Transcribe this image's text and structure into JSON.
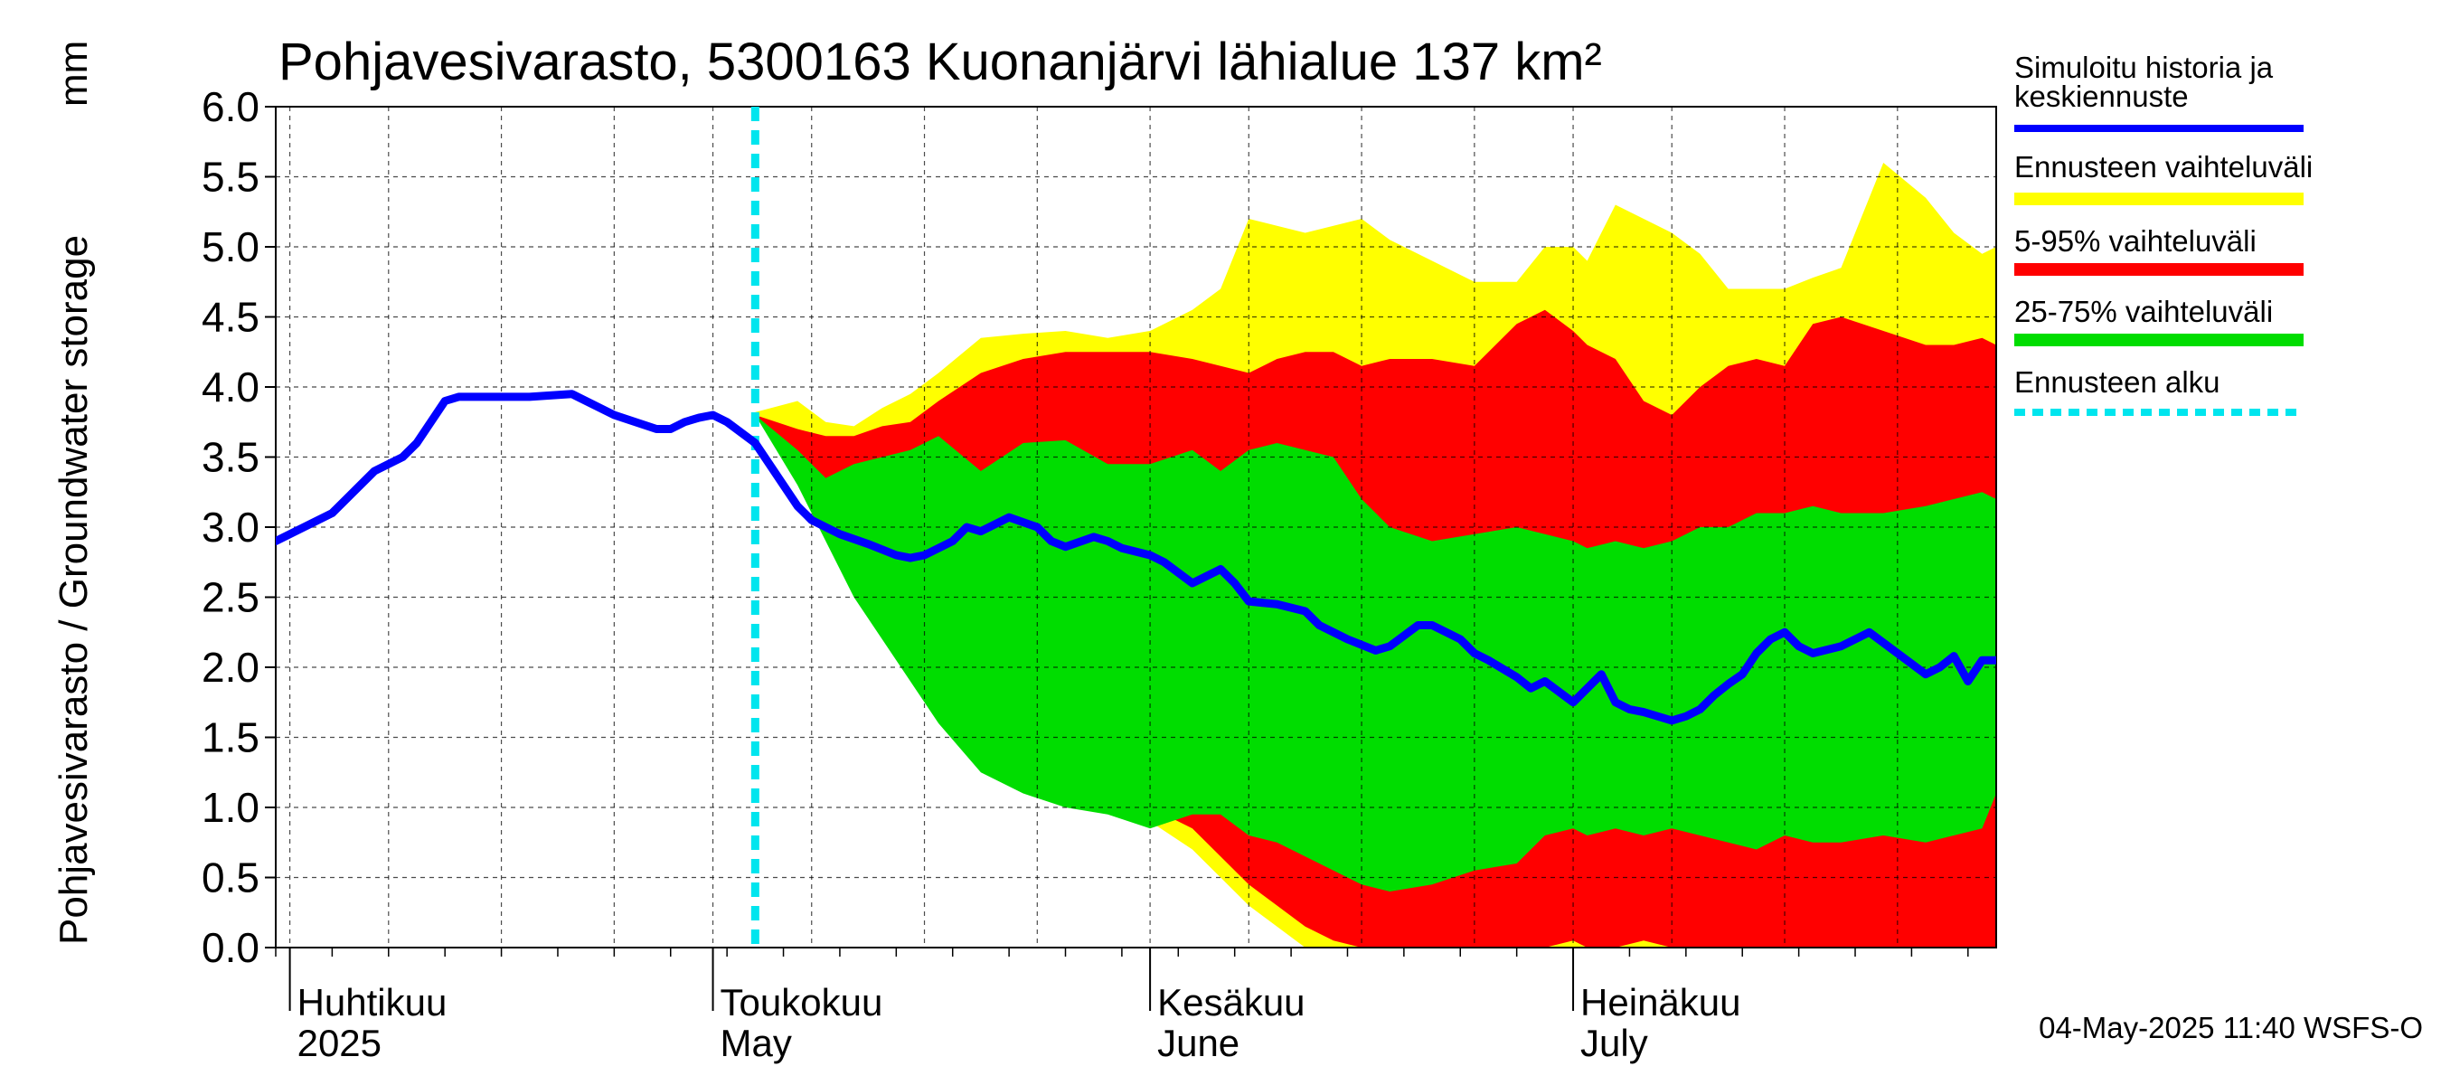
{
  "chart_data": {
    "type": "area",
    "title": "Pohjavesivarasto, 5300163 Kuonanjärvi lähialue 137 km²",
    "ylabel": "Pohjavesivarasto / Groundwater storage",
    "yunit": "mm",
    "ylim": [
      0.0,
      6.0
    ],
    "yticks": [
      "0.0",
      "0.5",
      "1.0",
      "1.5",
      "2.0",
      "2.5",
      "3.0",
      "3.5",
      "4.0",
      "4.5",
      "5.0",
      "5.5",
      "6.0"
    ],
    "xlim": [
      "2025-03-31",
      "2025-07-31"
    ],
    "grid": true,
    "months": [
      {
        "date": "2025-04-01",
        "fi": "Huhtikuu",
        "en": "2025"
      },
      {
        "date": "2025-05-01",
        "fi": "Toukokuu",
        "en": "May"
      },
      {
        "date": "2025-06-01",
        "fi": "Kesäkuu",
        "en": "June"
      },
      {
        "date": "2025-07-01",
        "fi": "Heinäkuu",
        "en": "July"
      }
    ],
    "forecast_start": "2025-05-04",
    "series": [
      {
        "name": "Simuloitu historia ja keskiennuste",
        "color": "#0000ff",
        "x": [
          "2025-03-31",
          "2025-04-02",
          "2025-04-04",
          "2025-04-06",
          "2025-04-07",
          "2025-04-09",
          "2025-04-10",
          "2025-04-12",
          "2025-04-13",
          "2025-04-14",
          "2025-04-15",
          "2025-04-16",
          "2025-04-18",
          "2025-04-21",
          "2025-04-24",
          "2025-04-27",
          "2025-04-28",
          "2025-04-29",
          "2025-04-30",
          "2025-05-01",
          "2025-05-02",
          "2025-05-04",
          "2025-05-05",
          "2025-05-06",
          "2025-05-07",
          "2025-05-08",
          "2025-05-10",
          "2025-05-12",
          "2025-05-14",
          "2025-05-15",
          "2025-05-16",
          "2025-05-18",
          "2025-05-19",
          "2025-05-20",
          "2025-05-22",
          "2025-05-24",
          "2025-05-25",
          "2025-05-26",
          "2025-05-28",
          "2025-05-29",
          "2025-05-30",
          "2025-06-01",
          "2025-06-02",
          "2025-06-04",
          "2025-06-06",
          "2025-06-07",
          "2025-06-08",
          "2025-06-10",
          "2025-06-12",
          "2025-06-13",
          "2025-06-14",
          "2025-06-15",
          "2025-06-17",
          "2025-06-18",
          "2025-06-20",
          "2025-06-21",
          "2025-06-22",
          "2025-06-23",
          "2025-06-24",
          "2025-06-25",
          "2025-06-27",
          "2025-06-28",
          "2025-06-29",
          "2025-07-01",
          "2025-07-03",
          "2025-07-04",
          "2025-07-05",
          "2025-07-06",
          "2025-07-07",
          "2025-07-08",
          "2025-07-09",
          "2025-07-10",
          "2025-07-11",
          "2025-07-12",
          "2025-07-13",
          "2025-07-14",
          "2025-07-15",
          "2025-07-16",
          "2025-07-17",
          "2025-07-18",
          "2025-07-20",
          "2025-07-22",
          "2025-07-24",
          "2025-07-26",
          "2025-07-27",
          "2025-07-28",
          "2025-07-29",
          "2025-07-30",
          "2025-07-31"
        ],
        "values": [
          2.9,
          3.0,
          3.1,
          3.3,
          3.4,
          3.5,
          3.6,
          3.9,
          3.93,
          3.93,
          3.93,
          3.93,
          3.93,
          3.95,
          3.8,
          3.7,
          3.7,
          3.75,
          3.78,
          3.8,
          3.75,
          3.6,
          3.45,
          3.3,
          3.15,
          3.05,
          2.95,
          2.88,
          2.8,
          2.78,
          2.8,
          2.9,
          3.0,
          2.97,
          3.07,
          3.0,
          2.9,
          2.86,
          2.93,
          2.9,
          2.85,
          2.8,
          2.75,
          2.6,
          2.7,
          2.6,
          2.47,
          2.45,
          2.4,
          2.3,
          2.25,
          2.2,
          2.12,
          2.15,
          2.3,
          2.3,
          2.25,
          2.2,
          2.1,
          2.05,
          1.93,
          1.85,
          1.9,
          1.75,
          1.95,
          1.75,
          1.7,
          1.68,
          1.65,
          1.62,
          1.65,
          1.7,
          1.8,
          1.88,
          1.95,
          2.1,
          2.2,
          2.25,
          2.15,
          2.1,
          2.15,
          2.25,
          2.1,
          1.95,
          2.0,
          2.08,
          1.9,
          2.05,
          2.05
        ]
      },
      {
        "name": "Ennusteen vaihteluväli",
        "color": "#ffff00",
        "x": [
          "2025-05-04",
          "2025-05-07",
          "2025-05-09",
          "2025-05-11",
          "2025-05-13",
          "2025-05-15",
          "2025-05-17",
          "2025-05-20",
          "2025-05-23",
          "2025-05-26",
          "2025-05-29",
          "2025-06-01",
          "2025-06-04",
          "2025-06-06",
          "2025-06-08",
          "2025-06-10",
          "2025-06-12",
          "2025-06-14",
          "2025-06-16",
          "2025-06-18",
          "2025-06-21",
          "2025-06-24",
          "2025-06-27",
          "2025-06-29",
          "2025-07-01",
          "2025-07-02",
          "2025-07-04",
          "2025-07-06",
          "2025-07-08",
          "2025-07-10",
          "2025-07-12",
          "2025-07-14",
          "2025-07-16",
          "2025-07-18",
          "2025-07-20",
          "2025-07-23",
          "2025-07-26",
          "2025-07-28",
          "2025-07-30",
          "2025-07-31"
        ],
        "high": [
          3.82,
          3.9,
          3.75,
          3.72,
          3.85,
          3.95,
          4.1,
          4.35,
          4.38,
          4.4,
          4.35,
          4.4,
          4.55,
          4.7,
          5.2,
          5.15,
          5.1,
          5.15,
          5.2,
          5.05,
          4.9,
          4.75,
          4.75,
          5.0,
          5.0,
          4.9,
          5.3,
          5.2,
          5.1,
          4.95,
          4.7,
          4.7,
          4.7,
          4.78,
          4.85,
          5.6,
          5.35,
          5.1,
          4.95,
          5.0
        ],
        "low": [
          3.82,
          3.55,
          3.1,
          2.7,
          2.3,
          2.0,
          1.75,
          1.5,
          1.3,
          1.1,
          1.05,
          0.9,
          0.7,
          0.5,
          0.3,
          0.15,
          0.0,
          0.0,
          0.0,
          0.0,
          0.0,
          0.0,
          0.0,
          0.0,
          0.0,
          0.0,
          0.0,
          0.0,
          0.0,
          0.0,
          0.0,
          0.0,
          0.0,
          0.0,
          0.0,
          0.0,
          0.0,
          0.0,
          0.0,
          0.0
        ]
      },
      {
        "name": "5-95% vaihteluväli",
        "color": "#ff0000",
        "x": [
          "2025-05-04",
          "2025-05-07",
          "2025-05-09",
          "2025-05-11",
          "2025-05-13",
          "2025-05-15",
          "2025-05-17",
          "2025-05-20",
          "2025-05-23",
          "2025-05-26",
          "2025-05-29",
          "2025-06-01",
          "2025-06-04",
          "2025-06-06",
          "2025-06-08",
          "2025-06-10",
          "2025-06-12",
          "2025-06-14",
          "2025-06-16",
          "2025-06-18",
          "2025-06-21",
          "2025-06-24",
          "2025-06-27",
          "2025-06-29",
          "2025-07-01",
          "2025-07-02",
          "2025-07-04",
          "2025-07-06",
          "2025-07-08",
          "2025-07-10",
          "2025-07-12",
          "2025-07-14",
          "2025-07-16",
          "2025-07-18",
          "2025-07-20",
          "2025-07-23",
          "2025-07-26",
          "2025-07-28",
          "2025-07-30",
          "2025-07-31"
        ],
        "high": [
          3.8,
          3.7,
          3.65,
          3.65,
          3.72,
          3.75,
          3.9,
          4.1,
          4.2,
          4.25,
          4.25,
          4.25,
          4.2,
          4.15,
          4.1,
          4.2,
          4.25,
          4.25,
          4.15,
          4.2,
          4.2,
          4.15,
          4.45,
          4.55,
          4.4,
          4.3,
          4.2,
          3.9,
          3.8,
          4.0,
          4.15,
          4.2,
          4.15,
          4.45,
          4.5,
          4.4,
          4.3,
          4.3,
          4.35,
          4.3
        ],
        "low": [
          3.8,
          3.4,
          3.0,
          2.6,
          2.3,
          2.1,
          1.9,
          1.65,
          1.45,
          1.25,
          1.15,
          1.0,
          0.85,
          0.65,
          0.45,
          0.3,
          0.15,
          0.05,
          0.0,
          0.0,
          0.0,
          0.0,
          0.0,
          0.0,
          0.05,
          0.0,
          0.0,
          0.05,
          0.0,
          0.0,
          0.0,
          0.0,
          0.0,
          0.0,
          0.0,
          0.0,
          0.0,
          0.0,
          0.0,
          0.0
        ]
      },
      {
        "name": "25-75% vaihteluväli",
        "color": "#00dd00",
        "x": [
          "2025-05-04",
          "2025-05-07",
          "2025-05-09",
          "2025-05-11",
          "2025-05-13",
          "2025-05-15",
          "2025-05-17",
          "2025-05-20",
          "2025-05-23",
          "2025-05-26",
          "2025-05-29",
          "2025-06-01",
          "2025-06-04",
          "2025-06-06",
          "2025-06-08",
          "2025-06-10",
          "2025-06-12",
          "2025-06-14",
          "2025-06-16",
          "2025-06-18",
          "2025-06-21",
          "2025-06-24",
          "2025-06-27",
          "2025-06-29",
          "2025-07-01",
          "2025-07-02",
          "2025-07-04",
          "2025-07-06",
          "2025-07-08",
          "2025-07-10",
          "2025-07-12",
          "2025-07-14",
          "2025-07-16",
          "2025-07-18",
          "2025-07-20",
          "2025-07-23",
          "2025-07-26",
          "2025-07-28",
          "2025-07-30",
          "2025-07-31"
        ],
        "high": [
          3.8,
          3.55,
          3.35,
          3.45,
          3.5,
          3.55,
          3.65,
          3.4,
          3.6,
          3.62,
          3.45,
          3.45,
          3.55,
          3.4,
          3.55,
          3.6,
          3.55,
          3.5,
          3.2,
          3.0,
          2.9,
          2.95,
          3.0,
          2.95,
          2.9,
          2.85,
          2.9,
          2.85,
          2.9,
          3.0,
          3.0,
          3.1,
          3.1,
          3.15,
          3.1,
          3.1,
          3.15,
          3.2,
          3.25,
          3.2
        ],
        "low": [
          3.8,
          3.3,
          2.9,
          2.5,
          2.2,
          1.9,
          1.6,
          1.25,
          1.1,
          1.0,
          0.95,
          0.85,
          0.95,
          0.95,
          0.8,
          0.75,
          0.65,
          0.55,
          0.45,
          0.4,
          0.45,
          0.55,
          0.6,
          0.8,
          0.85,
          0.8,
          0.85,
          0.8,
          0.85,
          0.8,
          0.75,
          0.7,
          0.8,
          0.75,
          0.75,
          0.8,
          0.75,
          0.8,
          0.85,
          1.1
        ]
      },
      {
        "name": "Ennusteen alku",
        "color": "#00e5ee"
      }
    ],
    "legend": [
      {
        "label": "Simuloitu historia ja",
        "label2": "keskiennuste",
        "color": "#0000ff",
        "style": "line"
      },
      {
        "label": "Ennusteen vaihteluväli",
        "color": "#ffff00",
        "style": "band"
      },
      {
        "label": "5-95% vaihteluväli",
        "color": "#ff0000",
        "style": "band"
      },
      {
        "label": "25-75% vaihteluväli",
        "color": "#00dd00",
        "style": "band"
      },
      {
        "label": "Ennusteen alku",
        "color": "#00e5ee",
        "style": "dashed"
      }
    ],
    "legend_position": "right"
  },
  "footer": "04-May-2025 11:40 WSFS-O"
}
